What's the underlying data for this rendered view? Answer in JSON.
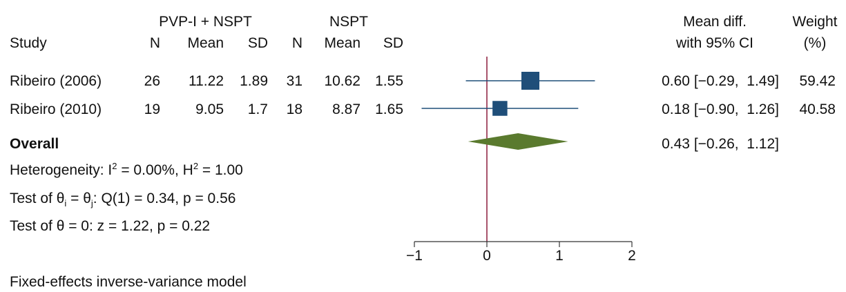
{
  "header": {
    "group1": "PVP-I + NSPT",
    "group2": "NSPT",
    "study": "Study",
    "n": "N",
    "mean": "Mean",
    "sd": "SD",
    "effect_line1": "Mean diff.",
    "effect_line2": "with 95% CI",
    "weight_line1": "Weight",
    "weight_line2": "(%)"
  },
  "studies": [
    {
      "name": "Ribeiro (2006)",
      "n1": "26",
      "mean1": "11.22",
      "sd1": "1.89",
      "n2": "31",
      "mean2": "10.62",
      "sd2": "1.55",
      "ci_text": "0.60 [−0.29,  1.49]",
      "weight": "59.42"
    },
    {
      "name": "Ribeiro (2010)",
      "n1": "19",
      "mean1": "9.05",
      "sd1": "1.7",
      "n2": "18",
      "mean2": "8.87",
      "sd2": "1.65",
      "ci_text": "0.18 [−0.90,  1.26]",
      "weight": "40.58"
    }
  ],
  "overall": {
    "label": "Overall",
    "ci_text": "0.43 [−0.26,  1.12]"
  },
  "stats": {
    "het_prefix": "Heterogeneity: I",
    "het_sup": "2",
    "het_mid": " = 0.00%, H",
    "het_sup2": "2",
    "het_end": " = 1.00",
    "test1_prefix": "Test of θ",
    "test1_sub1": "i",
    "test1_mid": " = θ",
    "test1_sub2": "j",
    "test1_end": ": Q(1) = 0.34, p = 0.56",
    "test2": "Test of θ = 0: z = 1.22, p = 0.22"
  },
  "footer": "Fixed-effects inverse-variance model",
  "colors": {
    "marker": "#1f4e79",
    "ci_line": "#1f4e79",
    "diamond": "#5a7a2e",
    "null_line": "#8b1a3a",
    "axis": "#333333"
  },
  "chart_data": {
    "type": "forest",
    "xlim": [
      -1,
      2
    ],
    "xticks": [
      -1,
      0,
      1,
      2
    ],
    "xtick_labels": [
      "−1",
      "0",
      "1",
      "2"
    ],
    "null_value": 0,
    "studies": [
      {
        "name": "Ribeiro (2006)",
        "estimate": 0.6,
        "lower": -0.29,
        "upper": 1.49,
        "weight": 59.42
      },
      {
        "name": "Ribeiro (2010)",
        "estimate": 0.18,
        "lower": -0.9,
        "upper": 1.26,
        "weight": 40.58
      }
    ],
    "overall": {
      "estimate": 0.43,
      "lower": -0.26,
      "upper": 1.12
    }
  }
}
